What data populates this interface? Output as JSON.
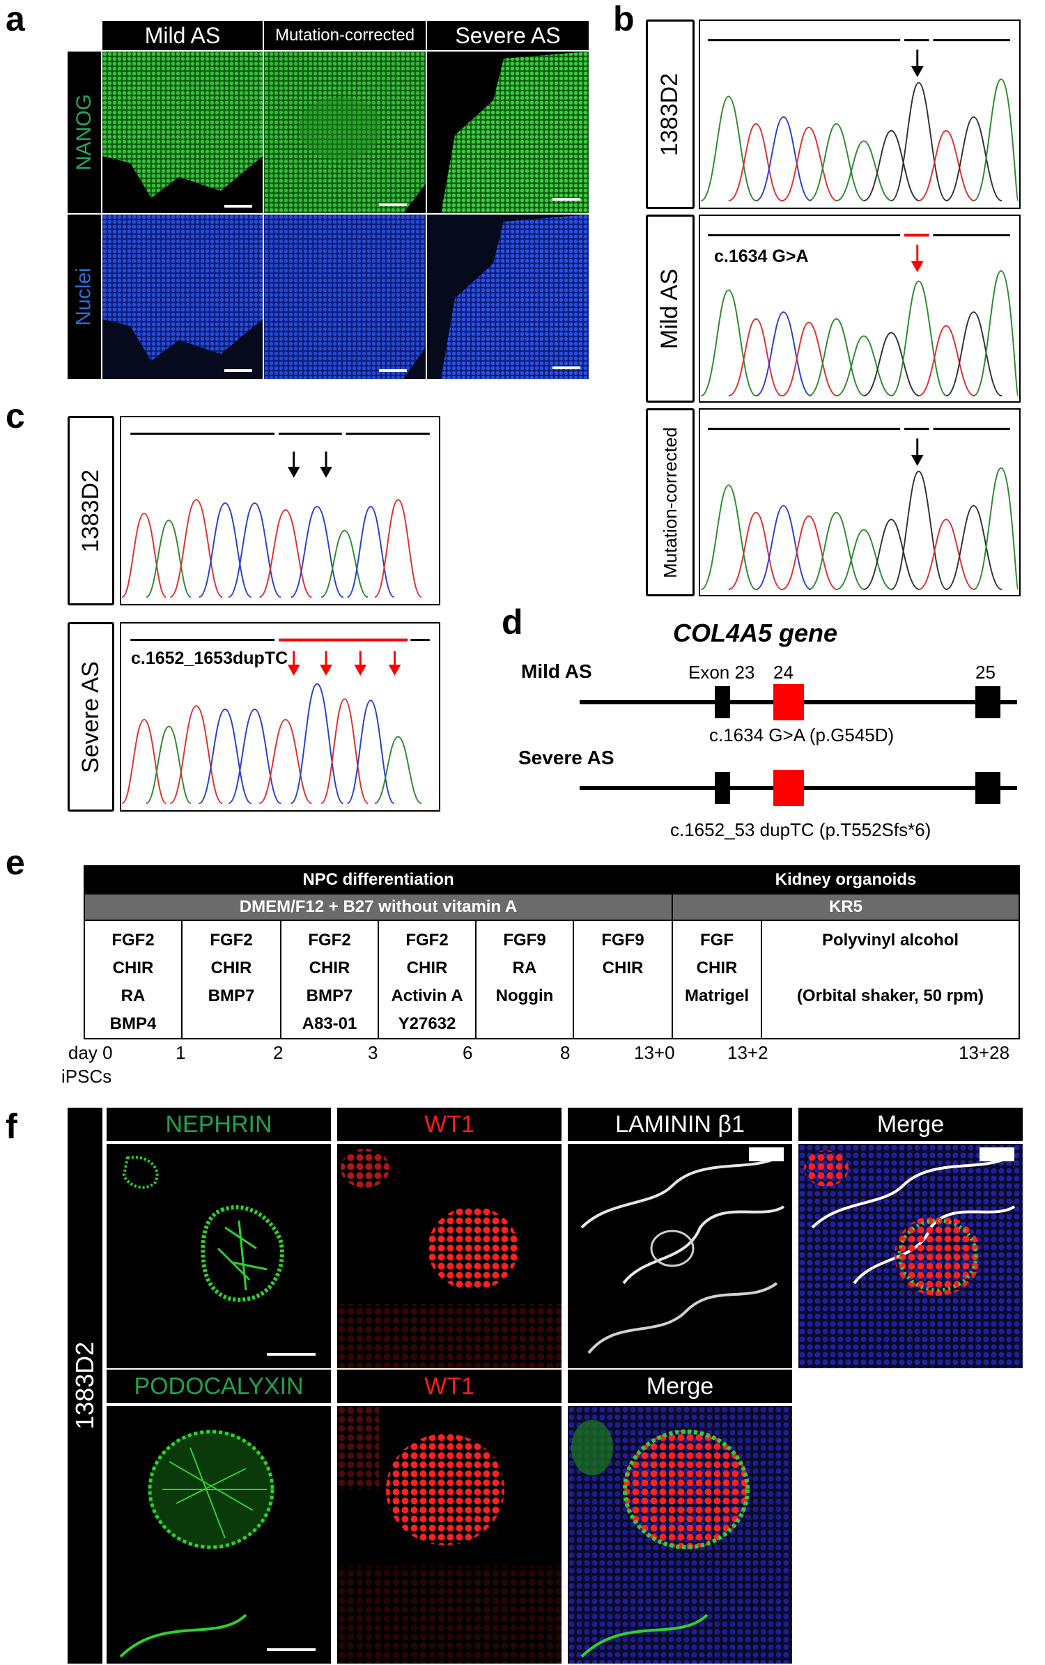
{
  "panel_labels": {
    "a": "a",
    "b": "b",
    "c": "c",
    "d": "d",
    "e": "e",
    "f": "f"
  },
  "panel_a": {
    "columns": [
      "Mild AS",
      "Mutation-corrected",
      "Severe AS"
    ],
    "rows": [
      "NANOG",
      "Nuclei"
    ],
    "colors": {
      "nanog": "#16a34a",
      "nuclei": "#1d4ed8",
      "nanog_label": "#22a85a",
      "nuclei_label": "#2a6fd4"
    }
  },
  "panel_b": {
    "rows": [
      {
        "label": "1383D2",
        "bases": "ATCTAAGGTGA",
        "mutation": ""
      },
      {
        "label": "Mild AS",
        "bases": "ATCTAAGATGA",
        "mutation": "c.1634 G>A"
      },
      {
        "label": "Mutation-corrected",
        "bases": "ATCTAAGGTGA",
        "mutation": ""
      }
    ]
  },
  "panel_c": {
    "rows": [
      {
        "label": "1383D2",
        "bases": "TATCCTCACT",
        "mutation": ""
      },
      {
        "label": "Severe AS",
        "bases": "TATCCTCTCAT",
        "mutation": "c.1652_1653dupTC"
      }
    ]
  },
  "panel_d": {
    "title": "COL4A5 gene",
    "rows": [
      {
        "label": "Mild AS",
        "annotation": "c.1634 G>A (p.G545D)"
      },
      {
        "label": "Severe AS",
        "annotation": "c.1652_53 dupTC (p.T552Sfs*6)"
      }
    ],
    "exon_labels": {
      "exon23": "Exon 23",
      "exon24": "24",
      "exon25": "25"
    },
    "colors": {
      "mutated_exon": "#ff0000",
      "exon": "#000000"
    }
  },
  "panel_e": {
    "header_left": "NPC differentiation",
    "header_right": "Kidney organoids",
    "sub_left": "DMEM/F12 + B27 without vitamin A",
    "sub_right": "KR5",
    "stages": [
      [
        "FGF2",
        "CHIR",
        "RA",
        "BMP4"
      ],
      [
        "FGF2",
        "CHIR",
        "BMP7"
      ],
      [
        "FGF2",
        "CHIR",
        "BMP7",
        "A83-01"
      ],
      [
        "FGF2",
        "CHIR",
        "Activin A",
        "Y27632"
      ],
      [
        "FGF9",
        "RA",
        "Noggin"
      ],
      [
        "FGF9",
        "CHIR"
      ],
      [
        "FGF",
        "CHIR",
        "Matrigel"
      ],
      [
        "Polyvinyl alcohol",
        "",
        "(Orbital shaker, 50 rpm)"
      ]
    ],
    "day_prefix": "day",
    "days": [
      "0",
      "1",
      "2",
      "3",
      "6",
      "8",
      "13+0",
      "13+2",
      "13+28"
    ],
    "start_label": "iPSCs"
  },
  "panel_f": {
    "row_label": "1383D2",
    "row1": [
      "NEPHRIN",
      "WT1",
      "LAMININ β1",
      "Merge"
    ],
    "row2": [
      "PODOCALYXIN",
      "WT1",
      "Merge"
    ],
    "colors": {
      "green": "#1fa34a",
      "red": "#ff1a1a",
      "white": "#ffffff"
    }
  }
}
